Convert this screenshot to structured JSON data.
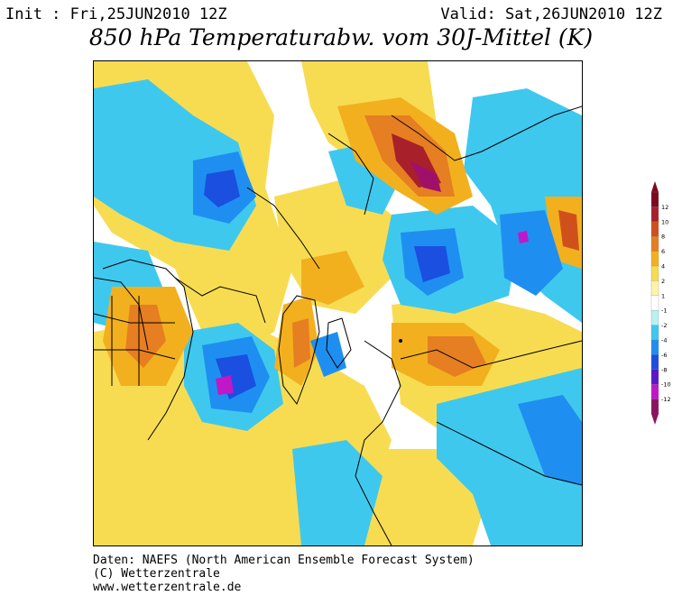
{
  "header": {
    "init": "Init : Fri,25JUN2010 12Z",
    "valid": "Valid: Sat,26JUN2010 12Z",
    "title": "850 hPa Temperaturabw. vom 30J-Mittel (K)"
  },
  "legend": {
    "labels": [
      "12",
      "10",
      "8",
      "6",
      "4",
      "2",
      "1",
      "-1",
      "-2",
      "-4",
      "-6",
      "-8",
      "-10",
      "-12"
    ],
    "colors": [
      "#7a0a1e",
      "#a8202a",
      "#d0501c",
      "#e67e22",
      "#f2b01e",
      "#f7dc52",
      "#fff3a8",
      "#ffffff",
      "#b8f2f0",
      "#3fc8ee",
      "#1e8ff0",
      "#1a4fe0",
      "#5a18c8",
      "#c018c8",
      "#8a1460"
    ]
  },
  "map": {
    "palette": {
      "warm_light": "#f7dc52",
      "warm": "#f2b01e",
      "warm_strong": "#e67e22",
      "hot": "#c8501c",
      "hotter": "#a8202a",
      "extreme": "#a0106a",
      "cool_light": "#b8f2f0",
      "cool": "#3fc8ee",
      "cold": "#1e8ff0",
      "colder": "#1a4fe0",
      "coldest": "#c018c8",
      "coastline": "#000000"
    }
  },
  "footer": {
    "line1": "Daten: NAEFS (North American Ensemble Forecast System)",
    "line2": "(C) Wetterzentrale",
    "line3": "www.wetterzentrale.de"
  }
}
